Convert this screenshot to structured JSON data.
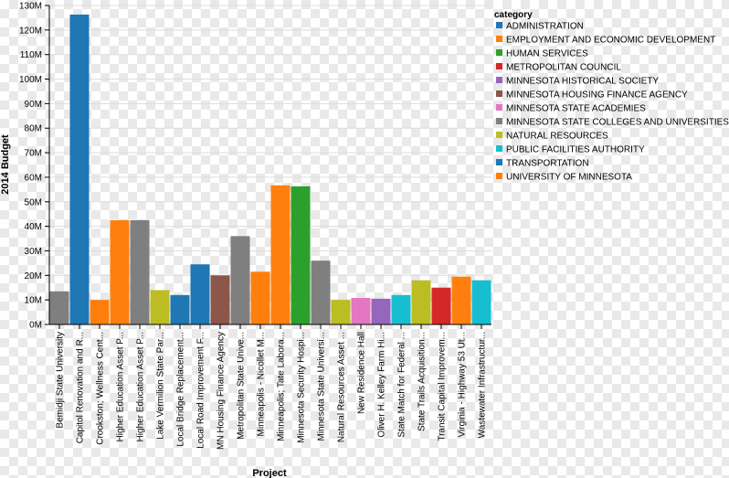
{
  "chart_data": {
    "type": "bar",
    "xlabel": "Project",
    "ylabel": "2014 Budget",
    "ylim": [
      0,
      130000000
    ],
    "yticks": [
      {
        "value": 0,
        "label": "0M"
      },
      {
        "value": 10000000,
        "label": "10M"
      },
      {
        "value": 20000000,
        "label": "20M"
      },
      {
        "value": 30000000,
        "label": "30M"
      },
      {
        "value": 40000000,
        "label": "40M"
      },
      {
        "value": 50000000,
        "label": "50M"
      },
      {
        "value": 60000000,
        "label": "60M"
      },
      {
        "value": 70000000,
        "label": "70M"
      },
      {
        "value": 80000000,
        "label": "80M"
      },
      {
        "value": 90000000,
        "label": "90M"
      },
      {
        "value": 100000000,
        "label": "100M"
      },
      {
        "value": 110000000,
        "label": "110M"
      },
      {
        "value": 120000000,
        "label": "120M"
      },
      {
        "value": 130000000,
        "label": "130M"
      }
    ],
    "grid": true,
    "legend": {
      "title": "category",
      "position": "right",
      "entries": [
        {
          "name": "ADMINISTRATION",
          "color": "#1f77b4"
        },
        {
          "name": "EMPLOYMENT AND ECONOMIC DEVELOPMENT",
          "color": "#ff7f0e"
        },
        {
          "name": "HUMAN SERVICES",
          "color": "#2ca02c"
        },
        {
          "name": "METROPOLITAN COUNCIL",
          "color": "#d62728"
        },
        {
          "name": "MINNESOTA HISTORICAL SOCIETY",
          "color": "#9467bd"
        },
        {
          "name": "MINNESOTA HOUSING FINANCE AGENCY",
          "color": "#8c564b"
        },
        {
          "name": "MINNESOTA STATE ACADEMIES",
          "color": "#e377c2"
        },
        {
          "name": "MINNESOTA STATE COLLEGES AND UNIVERSITIES",
          "color": "#7f7f7f"
        },
        {
          "name": "NATURAL RESOURCES",
          "color": "#bcbd22"
        },
        {
          "name": "PUBLIC FACILITIES AUTHORITY",
          "color": "#17becf"
        },
        {
          "name": "TRANSPORTATION",
          "color": "#1f77b4"
        },
        {
          "name": "UNIVERSITY OF MINNESOTA",
          "color": "#ff7f0e"
        }
      ]
    },
    "bars": [
      {
        "project": "Bemidji State University",
        "category": "MINNESOTA STATE COLLEGES AND UNIVERSITIES",
        "value": 13500000
      },
      {
        "project": "Capitol Renovation and R...",
        "category": "ADMINISTRATION",
        "value": 126300000
      },
      {
        "project": "Crookston; Wellness Cent...",
        "category": "UNIVERSITY OF MINNESOTA",
        "value": 10000000
      },
      {
        "project": "Higher Education Asset P...",
        "category": "UNIVERSITY OF MINNESOTA",
        "value": 42500000
      },
      {
        "project": "Higher Education Asset P...",
        "category": "MINNESOTA STATE COLLEGES AND UNIVERSITIES",
        "value": 42500000
      },
      {
        "project": "Lake Vermilion State Par...",
        "category": "NATURAL RESOURCES",
        "value": 14000000
      },
      {
        "project": "Local Bridge Replacement...",
        "category": "TRANSPORTATION",
        "value": 12000000
      },
      {
        "project": "Local Road Improvement F...",
        "category": "TRANSPORTATION",
        "value": 24500000
      },
      {
        "project": "MN Housing Finance Agency",
        "category": "MINNESOTA HOUSING FINANCE AGENCY",
        "value": 20000000
      },
      {
        "project": "Metropolitan State Unive...",
        "category": "MINNESOTA STATE COLLEGES AND UNIVERSITIES",
        "value": 36000000
      },
      {
        "project": "Minneapolis - Nicollet M...",
        "category": "EMPLOYMENT AND ECONOMIC DEVELOPMENT",
        "value": 21500000
      },
      {
        "project": "Minneapolis; Tate Labora...",
        "category": "UNIVERSITY OF MINNESOTA",
        "value": 56700000
      },
      {
        "project": "Minnesota Security Hospi...",
        "category": "HUMAN SERVICES",
        "value": 56300000
      },
      {
        "project": "Minnesota State Universi...",
        "category": "MINNESOTA STATE COLLEGES AND UNIVERSITIES",
        "value": 26000000
      },
      {
        "project": "Natural Resources Asset ...",
        "category": "NATURAL RESOURCES",
        "value": 10000000
      },
      {
        "project": "New Residence Hall",
        "category": "MINNESOTA STATE ACADEMIES",
        "value": 10800000
      },
      {
        "project": "Oliver H. Kelley Farm Hi...",
        "category": "MINNESOTA HISTORICAL SOCIETY",
        "value": 10500000
      },
      {
        "project": "State Match for Federal ...",
        "category": "PUBLIC FACILITIES AUTHORITY",
        "value": 12000000
      },
      {
        "project": "State Trails Acquisition...",
        "category": "NATURAL RESOURCES",
        "value": 18000000
      },
      {
        "project": "Transit Capital Improvem...",
        "category": "METROPOLITAN COUNCIL",
        "value": 15000000
      },
      {
        "project": "Virginia - Highway 53 Ut...",
        "category": "EMPLOYMENT AND ECONOMIC DEVELOPMENT",
        "value": 19500000
      },
      {
        "project": "Wastewater Infrastructur...",
        "category": "PUBLIC FACILITIES AUTHORITY",
        "value": 18000000
      }
    ]
  }
}
